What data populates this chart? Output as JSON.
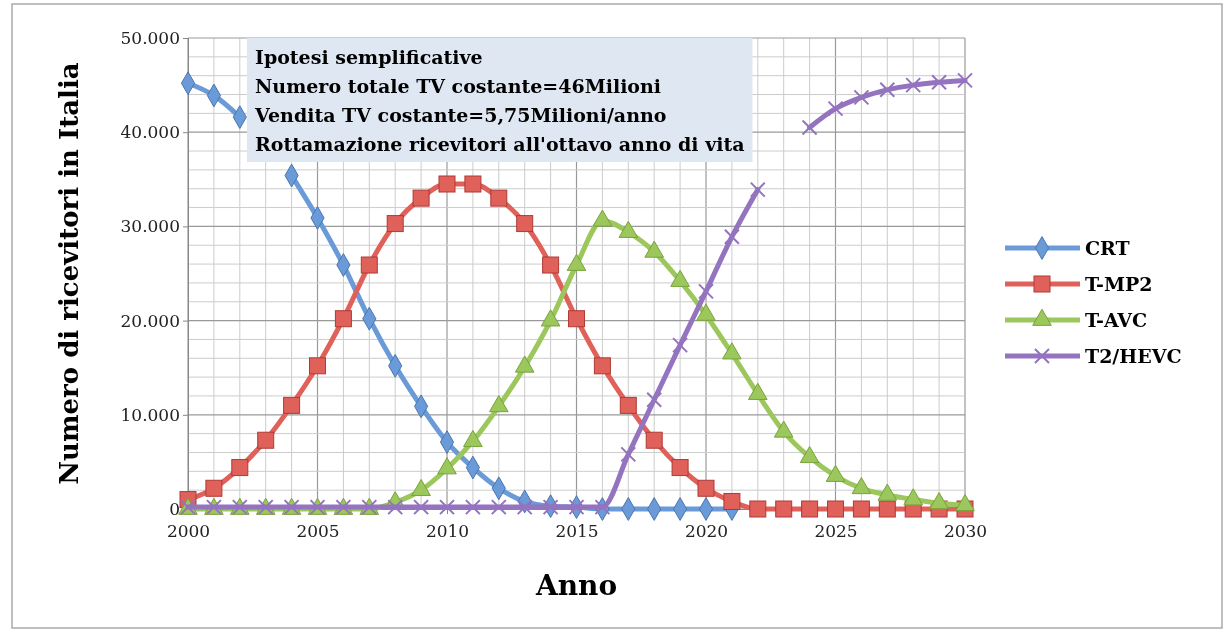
{
  "chart_data": {
    "type": "line",
    "xlabel": "Anno",
    "ylabel": "Numero di ricevitori in Italia",
    "x": [
      2000,
      2001,
      2002,
      2003,
      2004,
      2005,
      2006,
      2007,
      2008,
      2009,
      2010,
      2011,
      2012,
      2013,
      2014,
      2015,
      2016,
      2017,
      2018,
      2019,
      2020,
      2021,
      2022,
      2023,
      2024,
      2025,
      2026,
      2027,
      2028,
      2029,
      2030
    ],
    "xlim": [
      2000,
      2030
    ],
    "xticks": [
      2000,
      2005,
      2010,
      2015,
      2020,
      2025,
      2030
    ],
    "ylim": [
      0,
      50000
    ],
    "yticks": [
      {
        "value": 0,
        "label": "0"
      },
      {
        "value": 10000,
        "label": "10.000"
      },
      {
        "value": 20000,
        "label": "20.000"
      },
      {
        "value": 30000,
        "label": "30.000"
      },
      {
        "value": 40000,
        "label": "40.000"
      },
      {
        "value": 50000,
        "label": "50.000"
      }
    ],
    "grid": true,
    "legend": "right",
    "annotations": [
      "Ipotesi semplificative",
      "Numero totale TV costante=46Milioni",
      "Vendita TV costante=5,75Milioni/anno",
      "Rottamazione ricevitori all'ottavo anno di vita"
    ],
    "series": [
      {
        "name": "CRT",
        "color": "#6a9bd8",
        "marker": "diamond",
        "values": [
          45200,
          43900,
          41600,
          null,
          35400,
          30900,
          25900,
          20200,
          15200,
          10900,
          7100,
          4400,
          2200,
          800,
          300,
          200,
          0,
          0,
          0,
          0,
          0,
          0,
          null,
          null,
          null,
          null,
          null,
          null,
          null,
          null,
          null
        ]
      },
      {
        "name": "T-MP2",
        "color": "#e0605a",
        "marker": "square",
        "values": [
          1000,
          2200,
          4400,
          7300,
          11000,
          15200,
          20200,
          25900,
          30300,
          33000,
          34500,
          34500,
          33000,
          30300,
          25900,
          20200,
          15200,
          11000,
          7300,
          4400,
          2200,
          800,
          0,
          0,
          0,
          0,
          0,
          0,
          0,
          0,
          0
        ]
      },
      {
        "name": "T-AVC",
        "color": "#9bc75c",
        "marker": "triangle",
        "values": [
          0,
          0,
          0,
          0,
          0,
          0,
          0,
          0,
          700,
          2000,
          4300,
          7200,
          10900,
          15100,
          20000,
          25900,
          30600,
          29400,
          27300,
          24200,
          20600,
          16500,
          12200,
          8200,
          5500,
          3500,
          2200,
          1500,
          1000,
          600,
          400
        ]
      },
      {
        "name": "T2/HEVC",
        "color": "#9473bf",
        "marker": "cross",
        "values": [
          200,
          200,
          200,
          200,
          200,
          200,
          200,
          200,
          200,
          200,
          200,
          200,
          200,
          200,
          200,
          200,
          200,
          5800,
          11600,
          17400,
          23100,
          28900,
          33900,
          null,
          40500,
          42500,
          43700,
          44500,
          45000,
          45300,
          45500
        ]
      }
    ]
  }
}
